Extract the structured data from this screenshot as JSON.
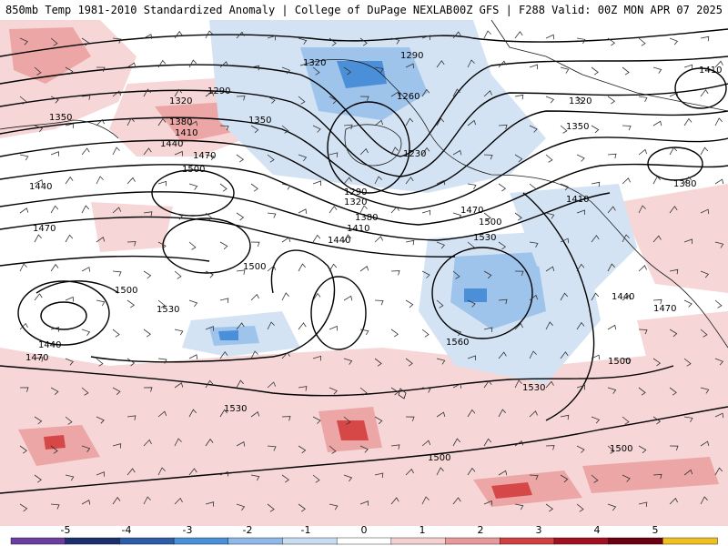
{
  "header": {
    "left": "850mb Temp 1981-2010 Standardized Anomaly | College of DuPage NEXLAB",
    "right": "00Z GFS | F288 Valid: 00Z MON APR 07 2025"
  },
  "colorbar": {
    "ticks": [
      "-5",
      "-4",
      "-3",
      "-2",
      "-1",
      "0",
      "1",
      "2",
      "3",
      "4",
      "5"
    ],
    "colors": [
      "#6b3fa0",
      "#1e2f6e",
      "#2c5ca8",
      "#4a90d9",
      "#8fb9e8",
      "#c8dcf2",
      "#ffffff",
      "#f5d0d0",
      "#e89a9a",
      "#d04040",
      "#a01020",
      "#6a0010",
      "#f0c020"
    ]
  },
  "contour_labels": [
    "1320",
    "1290",
    "1260",
    "1230",
    "1290",
    "1320",
    "1350",
    "1380",
    "1410",
    "1440",
    "1470",
    "1500",
    "1530",
    "1560",
    "1350",
    "1380",
    "1410",
    "1440",
    "1470",
    "1500",
    "1290",
    "1320",
    "1440",
    "1470",
    "1500",
    "1530",
    "1500",
    "1440",
    "1470",
    "1530",
    "1500",
    "1500",
    "1530",
    "1410",
    "1380",
    "1350",
    "1320",
    "1410",
    "1440",
    "1470",
    "1500"
  ],
  "map_colors": {
    "warm_light": "#f6d6d6",
    "warm_mid": "#eca6a6",
    "warm_strong": "#d64848",
    "cool_light": "#d3e3f4",
    "cool_mid": "#9fc4ec",
    "cool_strong": "#4a8fd8",
    "coast": "#1a1a1a",
    "contour": "#000000"
  }
}
